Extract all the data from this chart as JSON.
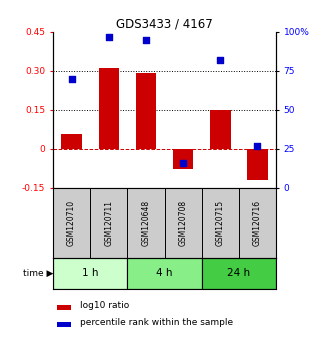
{
  "title": "GDS3433 / 4167",
  "samples": [
    "GSM120710",
    "GSM120711",
    "GSM120648",
    "GSM120708",
    "GSM120715",
    "GSM120716"
  ],
  "log10_ratio": [
    0.055,
    0.31,
    0.29,
    -0.08,
    0.15,
    -0.12
  ],
  "percentile_rank": [
    70,
    97,
    95,
    16,
    82,
    27
  ],
  "bar_color": "#cc0000",
  "dot_color": "#0000cc",
  "ylim_left": [
    -0.15,
    0.45
  ],
  "ylim_right": [
    0,
    100
  ],
  "yticks_left": [
    -0.15,
    0.0,
    0.15,
    0.3,
    0.45
  ],
  "ytick_labels_left": [
    "-0.15",
    "0",
    "0.15",
    "0.30",
    "0.45"
  ],
  "yticks_right": [
    0,
    25,
    50,
    75,
    100
  ],
  "ytick_labels_right": [
    "0",
    "25",
    "50",
    "75",
    "100%"
  ],
  "hlines": [
    0.15,
    0.3
  ],
  "hline_zero_color": "#cc0000",
  "hline_dotted_color": "#000000",
  "time_groups": [
    {
      "label": "1 h",
      "start": 0,
      "end": 2,
      "color": "#ccffcc"
    },
    {
      "label": "4 h",
      "start": 2,
      "end": 4,
      "color": "#88ee88"
    },
    {
      "label": "24 h",
      "start": 4,
      "end": 6,
      "color": "#44cc44"
    }
  ],
  "legend_red": "log10 ratio",
  "legend_blue": "percentile rank within the sample",
  "time_label": "time",
  "bar_width": 0.55,
  "dot_size": 25,
  "sample_label_color": "#cccccc"
}
